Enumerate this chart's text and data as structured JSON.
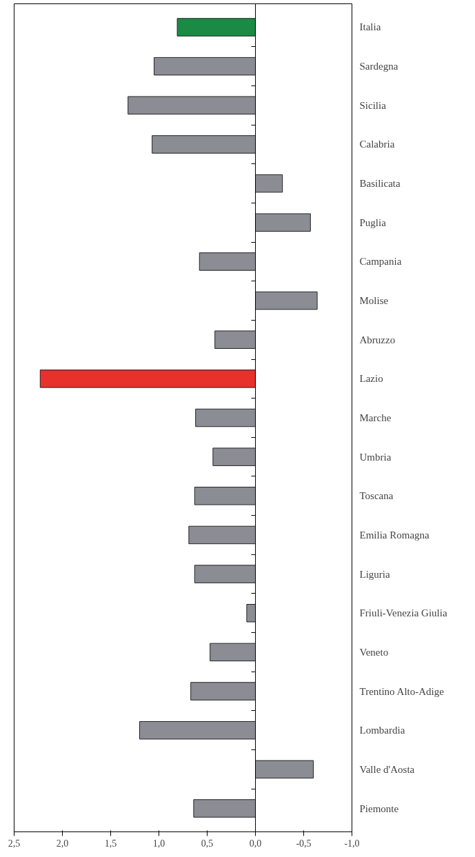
{
  "chart_data": {
    "type": "bar",
    "orientation": "horizontal",
    "categories": [
      "Italia",
      "Sardegna",
      "Sicilia",
      "Calabria",
      "Basilicata",
      "Puglia",
      "Campania",
      "Molise",
      "Abruzzo",
      "Lazio",
      "Marche",
      "Umbria",
      "Toscana",
      "Emilia Romagna",
      "Liguria",
      "Friuli-Venezia Giulia",
      "Veneto",
      "Trentino Alto-Adige",
      "Lombardia",
      "Valle d'Aosta",
      "Piemonte"
    ],
    "values": [
      0.81,
      1.05,
      1.32,
      1.07,
      -0.28,
      -0.57,
      0.58,
      -0.64,
      0.42,
      2.23,
      0.62,
      0.44,
      0.63,
      0.69,
      0.63,
      0.09,
      0.47,
      0.67,
      1.2,
      -0.6,
      0.64
    ],
    "colors": [
      "#1a8a45",
      "#8c8c94",
      "#8c8c94",
      "#8c8c94",
      "#8c8c94",
      "#8c8c94",
      "#8c8c94",
      "#8c8c94",
      "#8c8c94",
      "#e8302c",
      "#8c8c94",
      "#8c8c94",
      "#8c8c94",
      "#8c8c94",
      "#8c8c94",
      "#8c8c94",
      "#8c8c94",
      "#8c8c94",
      "#8c8c94",
      "#8c8c94",
      "#8c8c94"
    ],
    "xlim": [
      2.5,
      -1.0
    ],
    "xticks": [
      {
        "value": 2.5,
        "label": "2,5"
      },
      {
        "value": 2.0,
        "label": "2,0"
      },
      {
        "value": 1.5,
        "label": "1,5"
      },
      {
        "value": 1.0,
        "label": "1,0"
      },
      {
        "value": 0.5,
        "label": "0,5"
      },
      {
        "value": 0.0,
        "label": "0,0"
      },
      {
        "value": -0.5,
        "label": "-0,5"
      },
      {
        "value": -1.0,
        "label": "-1,0"
      }
    ],
    "line_style": "solid"
  }
}
